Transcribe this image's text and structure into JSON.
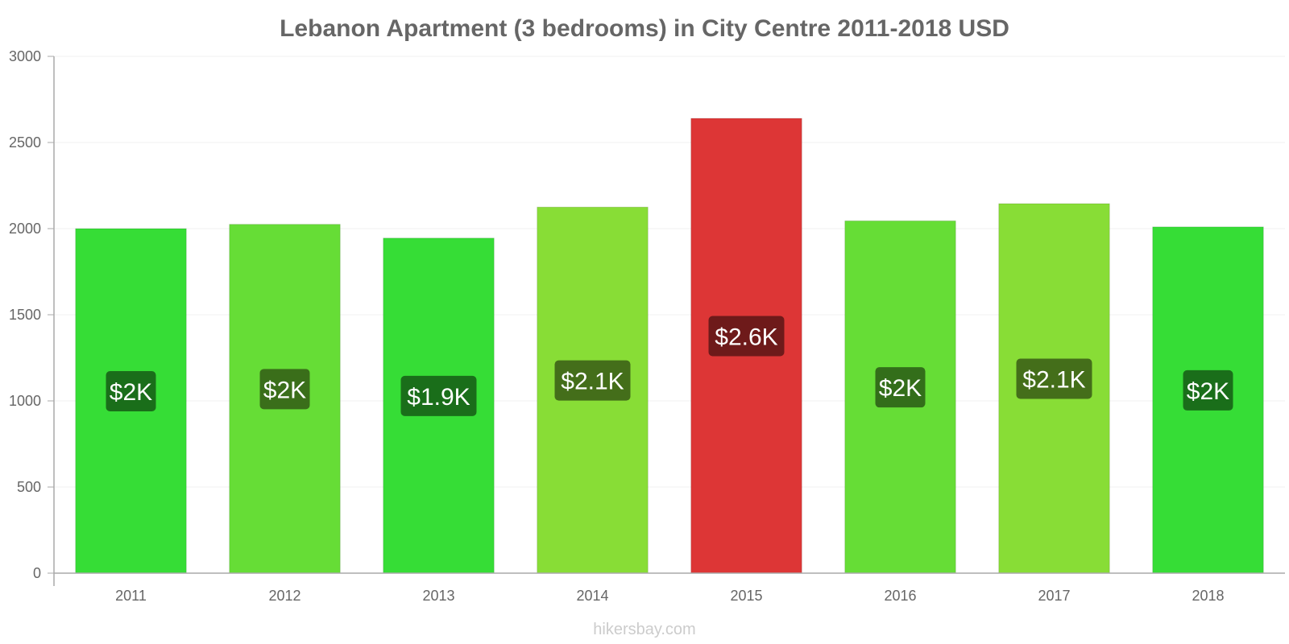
{
  "chart_data": {
    "type": "bar",
    "title": "Lebanon Apartment (3 bedrooms) in City Centre 2011-2018 USD",
    "xlabel": "",
    "ylabel": "",
    "ylim": [
      0,
      3000
    ],
    "yticks": [
      0,
      500,
      1000,
      1500,
      2000,
      2500,
      3000
    ],
    "categories": [
      "2011",
      "2012",
      "2013",
      "2014",
      "2015",
      "2016",
      "2017",
      "2018"
    ],
    "values": [
      2000,
      2025,
      1945,
      2125,
      2640,
      2045,
      2145,
      2010
    ],
    "data_labels": [
      "$2K",
      "$2K",
      "$1.9K",
      "$2.1K",
      "$2.6K",
      "$2K",
      "$2.1K",
      "$2K"
    ],
    "bar_colors": [
      "#36dd36",
      "#66dd36",
      "#36dd36",
      "#88dd36",
      "#dd3636",
      "#66dd36",
      "#88dd36",
      "#36dd36"
    ],
    "label_colors": [
      "#1a6e1a",
      "#3a6e1a",
      "#1a6e1a",
      "#446e1a",
      "#6e1a1a",
      "#336e1a",
      "#446e1a",
      "#1a6e1a"
    ],
    "grid": true
  },
  "footer": {
    "source": "hikersbay.com"
  }
}
